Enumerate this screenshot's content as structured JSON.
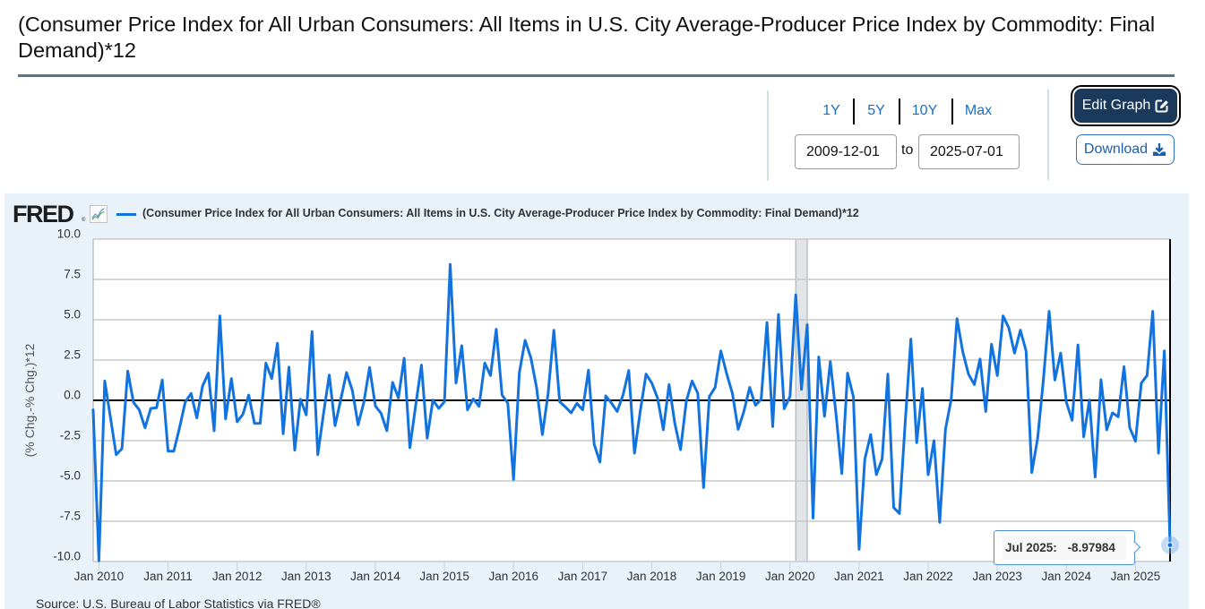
{
  "page": {
    "title": "(Consumer Price Index for All Urban Consumers: All Items in U.S. City Average-Producer Price Index by Commodity: Final Demand)*12"
  },
  "controls": {
    "ranges": [
      {
        "label": "1Y"
      },
      {
        "label": "5Y"
      },
      {
        "label": "10Y"
      },
      {
        "label": "Max"
      }
    ],
    "start_date": "2009-12-01",
    "to_label": "to",
    "end_date": "2025-07-01",
    "edit_graph_label": "Edit Graph",
    "download_label": "Download",
    "icons": {
      "edit": "pen-to-square-icon",
      "download": "download-icon"
    }
  },
  "chart": {
    "logo": "FRED",
    "logo_mark": "®",
    "legend_label": "(Consumer Price Index for All Urban Consumers: All Items in U.S. City Average-Producer Price Index by Commodity: Final Demand)*12",
    "source": "Source: U.S. Bureau of Labor Statistics via FRED®",
    "tooltip": {
      "date": "Jul 2025:",
      "value": "-8.97984"
    }
  },
  "colors": {
    "accent": "#1c6fc0",
    "series": "#1273de",
    "edit_button_bg": "#1b3a5b",
    "chart_bg": "#e9f1f9",
    "recession_fill": "#e1e5ea",
    "title_rule": "#5b7489"
  },
  "chart_data": {
    "type": "line",
    "title": "(Consumer Price Index for All Urban Consumers: All Items in U.S. City Average-Producer Price Index by Commodity: Final Demand)*12",
    "xlabel": "",
    "ylabel": "(% Chg.-% Chg.)*12",
    "ylim": [
      -10,
      10
    ],
    "yticks": [
      10,
      7.5,
      5,
      2.5,
      0,
      -2.5,
      -5,
      -7.5,
      -10
    ],
    "ytick_labels": [
      "10.0",
      "7.5",
      "5.0",
      "2.5",
      "0.0",
      "-2.5",
      "-5.0",
      "-7.5",
      "-10.0"
    ],
    "xtick_labels": [
      "Jan 2010",
      "Jan 2011",
      "Jan 2012",
      "Jan 2013",
      "Jan 2014",
      "Jan 2015",
      "Jan 2016",
      "Jan 2017",
      "Jan 2018",
      "Jan 2019",
      "Jan 2020",
      "Jan 2021",
      "Jan 2022",
      "Jan 2023",
      "Jan 2024",
      "Jan 2025"
    ],
    "grid": true,
    "legend": "top-left",
    "frequency": "monthly",
    "recessions": [
      {
        "start": "2020-02",
        "end": "2020-04"
      }
    ],
    "highlighted_point": {
      "x": "2025-07",
      "label": "Jul 2025",
      "value": -8.97984
    },
    "x": [
      "2009-12",
      "2010-01",
      "2010-02",
      "2010-03",
      "2010-04",
      "2010-05",
      "2010-06",
      "2010-07",
      "2010-08",
      "2010-09",
      "2010-10",
      "2010-11",
      "2010-12",
      "2011-01",
      "2011-02",
      "2011-03",
      "2011-04",
      "2011-05",
      "2011-06",
      "2011-07",
      "2011-08",
      "2011-09",
      "2011-10",
      "2011-11",
      "2011-12",
      "2012-01",
      "2012-02",
      "2012-03",
      "2012-04",
      "2012-05",
      "2012-06",
      "2012-07",
      "2012-08",
      "2012-09",
      "2012-10",
      "2012-11",
      "2012-12",
      "2013-01",
      "2013-02",
      "2013-03",
      "2013-04",
      "2013-05",
      "2013-06",
      "2013-07",
      "2013-08",
      "2013-09",
      "2013-10",
      "2013-11",
      "2013-12",
      "2014-01",
      "2014-02",
      "2014-03",
      "2014-04",
      "2014-05",
      "2014-06",
      "2014-07",
      "2014-08",
      "2014-09",
      "2014-10",
      "2014-11",
      "2014-12",
      "2015-01",
      "2015-02",
      "2015-03",
      "2015-04",
      "2015-05",
      "2015-06",
      "2015-07",
      "2015-08",
      "2015-09",
      "2015-10",
      "2015-11",
      "2015-12",
      "2016-01",
      "2016-02",
      "2016-03",
      "2016-04",
      "2016-05",
      "2016-06",
      "2016-07",
      "2016-08",
      "2016-09",
      "2016-10",
      "2016-11",
      "2016-12",
      "2017-01",
      "2017-02",
      "2017-03",
      "2017-04",
      "2017-05",
      "2017-06",
      "2017-07",
      "2017-08",
      "2017-09",
      "2017-10",
      "2017-11",
      "2017-12",
      "2018-01",
      "2018-02",
      "2018-03",
      "2018-04",
      "2018-05",
      "2018-06",
      "2018-07",
      "2018-08",
      "2018-09",
      "2018-10",
      "2018-11",
      "2018-12",
      "2019-01",
      "2019-02",
      "2019-03",
      "2019-04",
      "2019-05",
      "2019-06",
      "2019-07",
      "2019-08",
      "2019-09",
      "2019-10",
      "2019-11",
      "2019-12",
      "2020-01",
      "2020-02",
      "2020-03",
      "2020-04",
      "2020-05",
      "2020-06",
      "2020-07",
      "2020-08",
      "2020-09",
      "2020-10",
      "2020-11",
      "2020-12",
      "2021-01",
      "2021-02",
      "2021-03",
      "2021-04",
      "2021-05",
      "2021-06",
      "2021-07",
      "2021-08",
      "2021-09",
      "2021-10",
      "2021-11",
      "2021-12",
      "2022-01",
      "2022-02",
      "2022-03",
      "2022-04",
      "2022-05",
      "2022-06",
      "2022-07",
      "2022-08",
      "2022-09",
      "2022-10",
      "2022-11",
      "2022-12",
      "2023-01",
      "2023-02",
      "2023-03",
      "2023-04",
      "2023-05",
      "2023-06",
      "2023-07",
      "2023-08",
      "2023-09",
      "2023-10",
      "2023-11",
      "2023-12",
      "2024-01",
      "2024-02",
      "2024-03",
      "2024-04",
      "2024-05",
      "2024-06",
      "2024-07",
      "2024-08",
      "2024-09",
      "2024-10",
      "2024-11",
      "2024-12",
      "2025-01",
      "2025-02",
      "2025-03",
      "2025-04",
      "2025-05",
      "2025-06",
      "2025-07"
    ],
    "series": [
      {
        "name": "(Consumer Price Index for All Urban Consumers: All Items in U.S. City Average-Producer Price Index by Commodity: Final Demand)*12",
        "color": "#1273de",
        "values": [
          -0.59,
          -9.95,
          1.2,
          -1.07,
          -3.37,
          -3.0,
          1.81,
          -0.13,
          -0.59,
          -1.7,
          -0.5,
          -0.46,
          1.26,
          -3.15,
          -3.15,
          -1.7,
          -0.1,
          0.43,
          -1.09,
          0.89,
          1.69,
          -1.89,
          5.24,
          -1.15,
          1.35,
          -1.33,
          -0.87,
          0.33,
          -1.43,
          -1.43,
          2.31,
          1.35,
          3.54,
          -2.07,
          2.06,
          -3.09,
          0.06,
          -0.9,
          4.26,
          -3.37,
          -0.83,
          1.57,
          -1.57,
          0.06,
          1.72,
          0.61,
          -1.52,
          -0.13,
          2.04,
          -0.35,
          -0.81,
          -1.89,
          1.11,
          0.15,
          2.61,
          -2.94,
          -0.31,
          2.19,
          -2.35,
          0.02,
          -0.5,
          -0.09,
          8.43,
          1.07,
          3.39,
          -0.59,
          0.09,
          -0.37,
          2.31,
          1.54,
          4.41,
          0.33,
          -0.17,
          -4.91,
          1.72,
          3.72,
          2.65,
          0.8,
          -2.13,
          0.43,
          4.35,
          -0.09,
          -0.41,
          -0.78,
          -0.19,
          -0.59,
          1.87,
          -2.72,
          -3.83,
          0.28,
          -0.17,
          -0.69,
          0.33,
          1.85,
          -3.28,
          -0.69,
          1.63,
          1.07,
          0.15,
          -1.83,
          0.98,
          -1.43,
          -3.06,
          -0.04,
          1.2,
          0.43,
          -5.41,
          0.24,
          0.8,
          3.06,
          1.65,
          0.43,
          -1.8,
          -0.69,
          0.8,
          -0.31,
          0.06,
          4.83,
          -1.63,
          5.33,
          -0.52,
          0.24,
          6.54,
          0.68,
          4.69,
          -7.3,
          2.69,
          -0.99,
          2.4,
          -0.87,
          -4.54,
          1.69,
          0.24,
          -9.24,
          -3.65,
          -2.13,
          -4.61,
          -3.65,
          1.63,
          -6.65,
          -7.02,
          -1.43,
          3.8,
          -2.63,
          0.74,
          -4.61,
          -2.5,
          -7.57,
          -1.8,
          0.06,
          5.06,
          3.02,
          1.63,
          0.98,
          2.56,
          -0.69,
          3.48,
          1.54,
          5.24,
          4.5,
          2.93,
          4.35,
          3.06,
          -4.48,
          -2.35,
          1.26,
          5.52,
          1.26,
          2.93,
          -0.13,
          -1.24,
          3.44,
          -2.26,
          0.02,
          -4.76,
          1.28,
          -1.83,
          -0.78,
          -1.02,
          2.09,
          -1.7,
          -2.54,
          1.07,
          1.54,
          5.52,
          -3.28,
          3.06,
          -8.97984
        ]
      }
    ]
  }
}
